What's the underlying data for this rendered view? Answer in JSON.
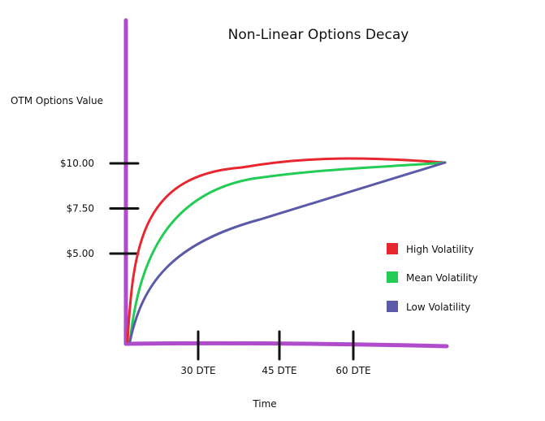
{
  "chart_data": {
    "type": "line",
    "title": "Non-Linear Options Decay",
    "ylabel": "OTM Options Value",
    "xlabel": "Time",
    "y_ticks": [
      {
        "value": 10,
        "label": "$10.00"
      },
      {
        "value": 7.5,
        "label": "$7.50"
      },
      {
        "value": 5,
        "label": "$5.00"
      }
    ],
    "x_ticks": [
      {
        "label": "30 DTE"
      },
      {
        "label": "45 DTE"
      },
      {
        "label": "60 DTE"
      }
    ],
    "grid": false,
    "legend_position": "right",
    "series": [
      {
        "name": "High Volatility",
        "color": "#e8262f"
      },
      {
        "name": "Mean Volatility",
        "color": "#22cc55"
      },
      {
        "name": "Low Volatility",
        "color": "#5a5aa8"
      }
    ],
    "axis_color": "#b04ccc",
    "tick_color": "#111111"
  }
}
